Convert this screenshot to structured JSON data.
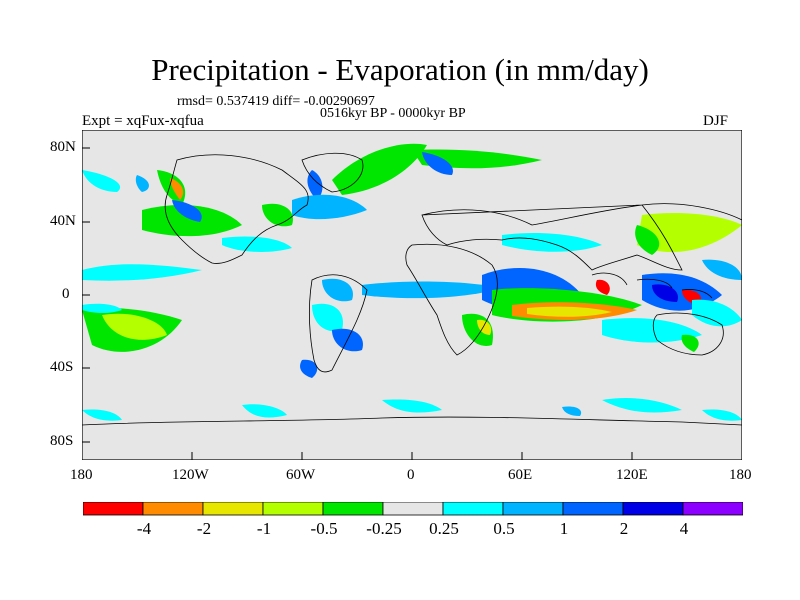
{
  "title": "Precipitation - Evaporation (in mm/day)",
  "stats": "rmsd= 0.537419 diff= -0.00290697",
  "period": "0516kyr BP - 0000kyr BP",
  "experiment": "Expt = xqFux-xqfua",
  "season": "DJF",
  "lon_ticks": [
    "180",
    "120W",
    "60W",
    "0",
    "60E",
    "120E",
    "180"
  ],
  "lat_ticks": [
    "80N",
    "40N",
    "0",
    "40S",
    "80S"
  ],
  "colorbar": {
    "colors": [
      "#ff0000",
      "#ff8c00",
      "#e6e600",
      "#b4ff00",
      "#00e600",
      "#e6e6e6",
      "#00ffff",
      "#00b4ff",
      "#0064ff",
      "#0000e6",
      "#8c00ff"
    ],
    "labels": [
      "-4",
      "-2",
      "-1",
      "-0.5",
      "-0.25",
      "0.25",
      "0.5",
      "1",
      "2",
      "4"
    ]
  },
  "colors": {
    "land_ocean_background": "#e6e6e6",
    "coastline": "#000000"
  }
}
